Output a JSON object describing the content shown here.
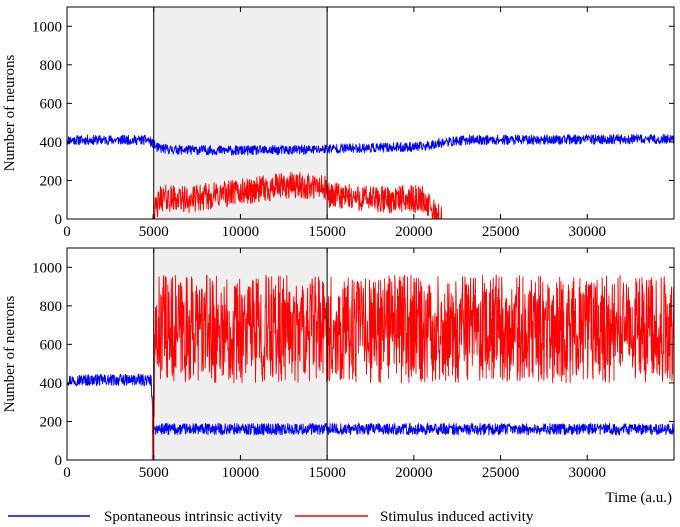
{
  "chart_data": [
    {
      "type": "line",
      "panel": "top",
      "ylabel": "Number of neurons",
      "xlim": [
        0,
        35000
      ],
      "ylim": [
        0,
        1100
      ],
      "x_ticks": [
        "0",
        "5000",
        "10000",
        "15000",
        "20000",
        "25000",
        "30000"
      ],
      "y_ticks": [
        "0",
        "200",
        "400",
        "600",
        "800",
        "1000"
      ],
      "stimulus_window": [
        5000,
        15000
      ],
      "series": [
        {
          "name": "Spontaneous intrinsic activity",
          "color": "#0000ff",
          "points": [
            [
              0,
              410
            ],
            [
              4700,
              410
            ],
            [
              5200,
              370
            ],
            [
              6000,
              360
            ],
            [
              10000,
              355
            ],
            [
              14500,
              360
            ],
            [
              15000,
              365
            ],
            [
              18000,
              370
            ],
            [
              20500,
              375
            ],
            [
              21500,
              395
            ],
            [
              23000,
              410
            ],
            [
              35000,
              415
            ]
          ],
          "noise_amplitude": 25
        },
        {
          "name": "Stimulus induced activity",
          "color": "#ff0000",
          "points": [
            [
              0,
              0
            ],
            [
              4900,
              0
            ],
            [
              5400,
              110
            ],
            [
              7000,
              100
            ],
            [
              9000,
              130
            ],
            [
              11000,
              150
            ],
            [
              13000,
              175
            ],
            [
              14800,
              160
            ],
            [
              15200,
              120
            ],
            [
              18000,
              100
            ],
            [
              20500,
              105
            ],
            [
              21200,
              30
            ],
            [
              21600,
              0
            ],
            [
              35000,
              0
            ]
          ],
          "noise_amplitude": 70
        }
      ]
    },
    {
      "type": "line",
      "panel": "bottom",
      "ylabel": "Number of neurons",
      "xlabel": "Time (a.u.)",
      "xlim": [
        0,
        35000
      ],
      "ylim": [
        0,
        1100
      ],
      "x_ticks": [
        "0",
        "5000",
        "10000",
        "15000",
        "20000",
        "25000",
        "30000"
      ],
      "y_ticks": [
        "0",
        "200",
        "400",
        "600",
        "800",
        "1000"
      ],
      "stimulus_window": [
        5000,
        15000
      ],
      "series": [
        {
          "name": "Spontaneous intrinsic activity",
          "color": "#0000ff",
          "points": [
            [
              0,
              415
            ],
            [
              4850,
              415
            ],
            [
              4950,
              200
            ],
            [
              5100,
              160
            ],
            [
              35000,
              160
            ]
          ],
          "noise_amplitude": 30
        },
        {
          "name": "Stimulus induced activity",
          "color": "#ff0000",
          "points": [
            [
              0,
              0
            ],
            [
              4900,
              0
            ],
            [
              5150,
              680
            ],
            [
              35000,
              680
            ]
          ],
          "noise_amplitude": 280
        }
      ]
    }
  ],
  "legend": {
    "spontaneous_label": "Spontaneous intrinsic activity",
    "spontaneous_color": "#0000ff",
    "stimulus_label": "Stimulus induced activity",
    "stimulus_color": "#ff0000"
  },
  "shade_color": "#efefef"
}
